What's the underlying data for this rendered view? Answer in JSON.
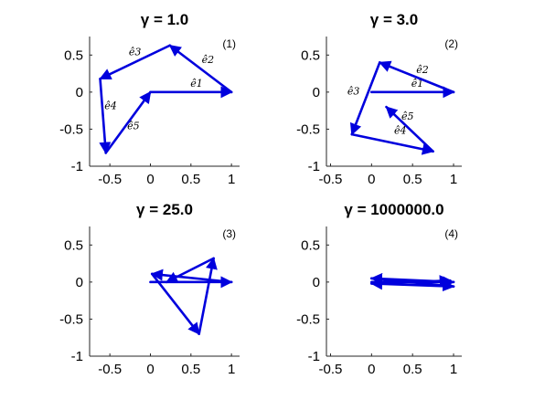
{
  "colors": {
    "vector": "#0000dd",
    "axis": "#262626",
    "background": "#ffffff"
  },
  "chart_data": [
    {
      "type": "line",
      "panel_label": "(1)",
      "title": "γ = 1.0",
      "xlim": [
        -0.75,
        1.1
      ],
      "ylim": [
        -1,
        0.75
      ],
      "xticks": [
        -0.5,
        0,
        0.5,
        1
      ],
      "xtick_labels": [
        "-0.5",
        "0",
        "0.5",
        "1"
      ],
      "yticks": [
        -1,
        -0.5,
        0,
        0.5
      ],
      "ytick_labels": [
        "-1",
        "-0.5",
        "0",
        "0.5"
      ],
      "grid": false,
      "vectors": [
        {
          "label": "ê1",
          "from": [
            0,
            0
          ],
          "to": [
            1.0,
            0
          ],
          "label_at": [
            0.57,
            0.07
          ]
        },
        {
          "label": "ê2",
          "from": [
            1.0,
            0
          ],
          "to": [
            0.24,
            0.63
          ],
          "label_at": [
            0.71,
            0.39
          ]
        },
        {
          "label": "ê3",
          "from": [
            0.24,
            0.63
          ],
          "to": [
            -0.62,
            0.18
          ],
          "label_at": [
            -0.19,
            0.5
          ]
        },
        {
          "label": "ê4",
          "from": [
            -0.62,
            0.18
          ],
          "to": [
            -0.55,
            -0.82
          ],
          "label_at": [
            -0.49,
            -0.23
          ]
        },
        {
          "label": "ê5",
          "from": [
            -0.55,
            -0.82
          ],
          "to": [
            0,
            0
          ],
          "label_at": [
            -0.21,
            -0.5
          ]
        }
      ]
    },
    {
      "type": "line",
      "panel_label": "(2)",
      "title": "γ = 3.0",
      "xlim": [
        -0.55,
        1.1
      ],
      "ylim": [
        -1,
        0.75
      ],
      "xticks": [
        -0.5,
        0,
        0.5,
        1
      ],
      "xtick_labels": [
        "-0.5",
        "0",
        "0.5",
        "1"
      ],
      "yticks": [
        -1,
        -0.5,
        0,
        0.5
      ],
      "ytick_labels": [
        "-1",
        "-0.5",
        "0",
        "0.5"
      ],
      "grid": false,
      "vectors": [
        {
          "label": "ê1",
          "from": [
            0,
            0
          ],
          "to": [
            1.0,
            0
          ],
          "label_at": [
            0.56,
            0.07
          ]
        },
        {
          "label": "ê2",
          "from": [
            1.0,
            0
          ],
          "to": [
            0.1,
            0.4
          ],
          "label_at": [
            0.62,
            0.26
          ]
        },
        {
          "label": "ê3",
          "from": [
            0.1,
            0.4
          ],
          "to": [
            -0.24,
            -0.57
          ],
          "label_at": [
            -0.22,
            -0.03
          ]
        },
        {
          "label": "ê4",
          "from": [
            -0.24,
            -0.57
          ],
          "to": [
            0.75,
            -0.8
          ],
          "label_at": [
            0.35,
            -0.56
          ]
        },
        {
          "label": "ê5",
          "from": [
            0.75,
            -0.8
          ],
          "to": [
            0.18,
            -0.2
          ],
          "label_at": [
            0.44,
            -0.37
          ]
        }
      ]
    },
    {
      "type": "line",
      "panel_label": "(3)",
      "title": "γ = 25.0",
      "xlim": [
        -0.75,
        1.1
      ],
      "ylim": [
        -1,
        0.75
      ],
      "xticks": [
        -0.5,
        0,
        0.5,
        1
      ],
      "xtick_labels": [
        "-0.5",
        "0",
        "0.5",
        "1"
      ],
      "yticks": [
        -1,
        -0.5,
        0,
        0.5
      ],
      "ytick_labels": [
        "-1",
        "-0.5",
        "0",
        "0.5"
      ],
      "grid": false,
      "vectors": [
        {
          "from": [
            0,
            0
          ],
          "to": [
            1.0,
            0
          ]
        },
        {
          "from": [
            1.0,
            0
          ],
          "to": [
            0.02,
            0.11
          ]
        },
        {
          "from": [
            0.02,
            0.11
          ],
          "to": [
            0.6,
            -0.7
          ]
        },
        {
          "from": [
            0.6,
            -0.7
          ],
          "to": [
            0.78,
            0.32
          ]
        },
        {
          "from": [
            0.78,
            0.32
          ],
          "to": [
            0.2,
            0
          ]
        }
      ]
    },
    {
      "type": "line",
      "panel_label": "(4)",
      "title": "γ = 1000000.0",
      "xlim": [
        -0.55,
        1.1
      ],
      "ylim": [
        -1,
        0.75
      ],
      "xticks": [
        -0.5,
        0,
        0.5,
        1
      ],
      "xtick_labels": [
        "-0.5",
        "0",
        "0.5",
        "1"
      ],
      "yticks": [
        -1,
        -0.5,
        0,
        0.5
      ],
      "ytick_labels": [
        "-1",
        "-0.5",
        "0",
        "0.5"
      ],
      "grid": false,
      "vectors": [
        {
          "from": [
            0,
            0
          ],
          "to": [
            1.0,
            0
          ]
        },
        {
          "from": [
            1.0,
            0
          ],
          "to": [
            0.0,
            0.05
          ]
        },
        {
          "from": [
            0.0,
            0.05
          ],
          "to": [
            1.0,
            -0.06
          ]
        },
        {
          "from": [
            1.0,
            -0.06
          ],
          "to": [
            0.0,
            -0.02
          ]
        },
        {
          "from": [
            0.0,
            -0.02
          ],
          "to": [
            0.96,
            0.02
          ]
        }
      ]
    }
  ]
}
